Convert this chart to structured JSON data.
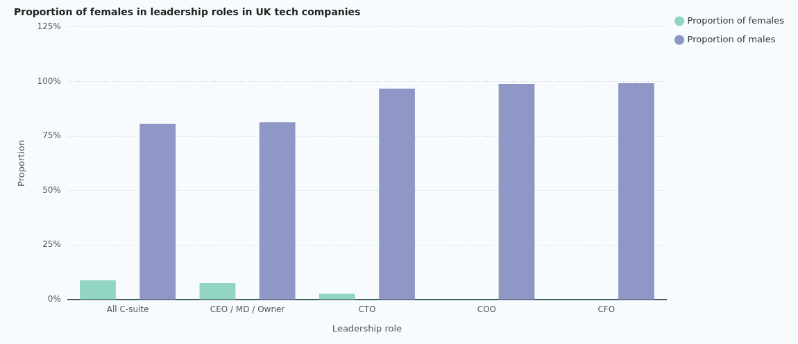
{
  "chart_data": {
    "type": "bar",
    "title": "Proportion of females in leadership roles in UK tech companies",
    "xlabel": "Leadership role",
    "ylabel": "Proportion",
    "categories": [
      "All C-suite",
      "CEO / MD / Owner",
      "CTO",
      "COO",
      "CFO"
    ],
    "series": [
      {
        "name": "Proportion of females",
        "color": "#92d5c5",
        "values": [
          8.8,
          7.6,
          2.7,
          0,
          0
        ]
      },
      {
        "name": "Proportion of males",
        "color": "#8f97c6",
        "values": [
          80.5,
          81.3,
          96.7,
          98.9,
          99.2
        ]
      }
    ],
    "ylim": [
      0,
      125
    ],
    "yticks": [
      {
        "value": 0,
        "label": "0%"
      },
      {
        "value": 25,
        "label": "25%"
      },
      {
        "value": 50,
        "label": "50%"
      },
      {
        "value": 75,
        "label": "75%"
      },
      {
        "value": 100,
        "label": "100%"
      },
      {
        "value": 125,
        "label": "125%"
      }
    ],
    "grid": "y",
    "legend": "top right",
    "line_style": "dotted"
  }
}
